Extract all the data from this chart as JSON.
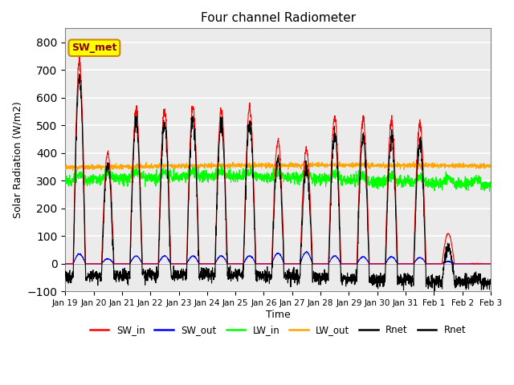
{
  "title": "Four channel Radiometer",
  "xlabel": "Time",
  "ylabel": "Solar Radiation (W/m2)",
  "ylim": [
    -100,
    850
  ],
  "annotation": "SW_met",
  "legend_labels": [
    "SW_in",
    "SW_out",
    "LW_in",
    "LW_out",
    "Rnet",
    "Rnet"
  ],
  "legend_colors": [
    "red",
    "blue",
    "lime",
    "orange",
    "black",
    "black"
  ],
  "legend_linestyles": [
    "-",
    "-",
    "-",
    "-",
    "-",
    "-"
  ],
  "sw_in_color": "red",
  "sw_out_color": "blue",
  "lw_in_color": "lime",
  "lw_out_color": "orange",
  "rnet_color": "black",
  "n_days": 15,
  "start_day": 19,
  "day_peaks_sw_in": [
    730,
    400,
    560,
    555,
    565,
    555,
    565,
    445,
    415,
    530,
    525,
    515,
    505,
    110,
    0
  ],
  "day_peaks_sw_out": [
    35,
    18,
    28,
    28,
    28,
    28,
    28,
    38,
    42,
    28,
    25,
    25,
    22,
    8,
    0
  ]
}
